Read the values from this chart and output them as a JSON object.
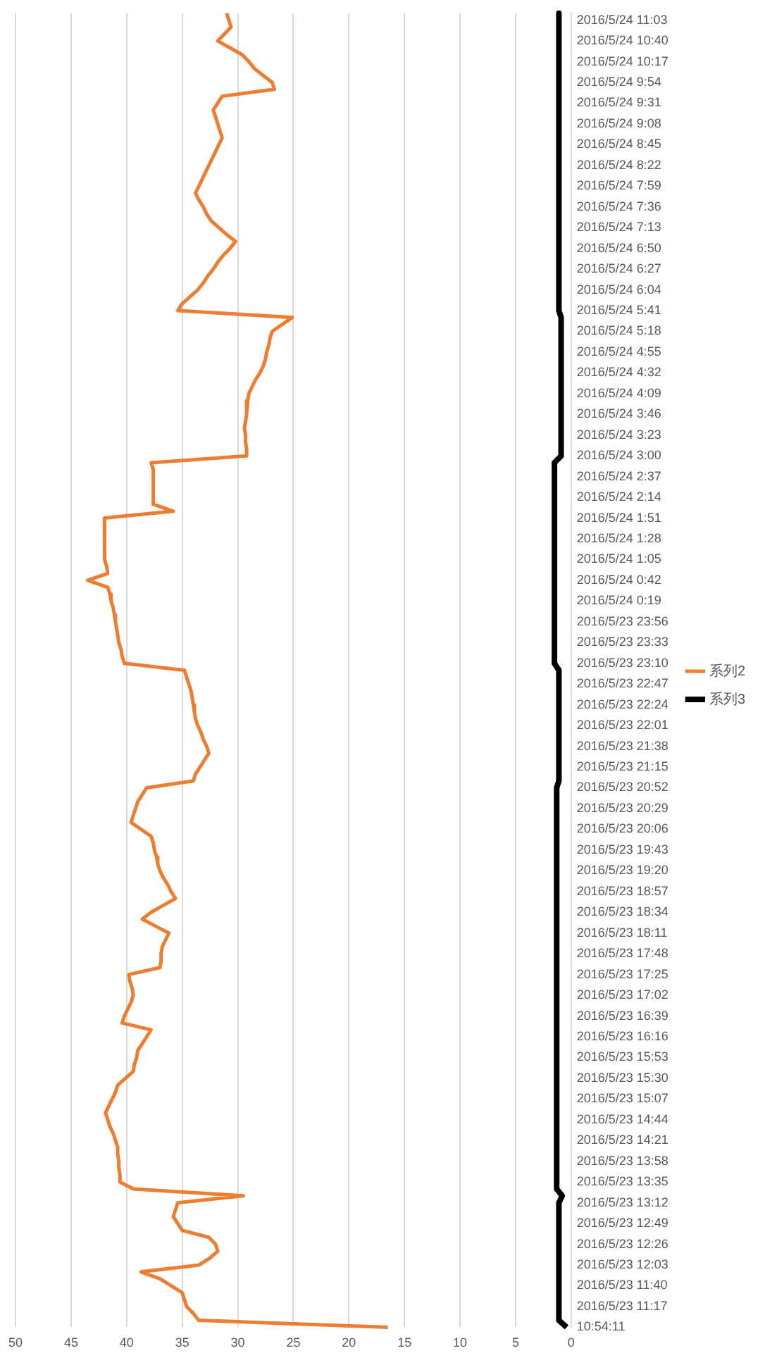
{
  "chart_data": {
    "type": "line",
    "categories": [
      null,
      "2016/5/24 11:03",
      null,
      null,
      "2016/5/24 10:40",
      null,
      null,
      "2016/5/24 10:17",
      null,
      null,
      "2016/5/24 9:54",
      null,
      null,
      "2016/5/24 9:31",
      null,
      null,
      "2016/5/24 9:08",
      null,
      null,
      "2016/5/24 8:45",
      null,
      null,
      "2016/5/24 8:22",
      null,
      null,
      "2016/5/24 7:59",
      null,
      null,
      "2016/5/24 7:36",
      null,
      null,
      "2016/5/24 7:13",
      null,
      null,
      "2016/5/24 6:50",
      null,
      null,
      "2016/5/24 6:27",
      null,
      null,
      "2016/5/24 6:04",
      null,
      null,
      "2016/5/24 5:41",
      null,
      null,
      "2016/5/24 5:18",
      null,
      null,
      "2016/5/24 4:55",
      null,
      null,
      "2016/5/24 4:32",
      null,
      null,
      "2016/5/24 4:09",
      null,
      null,
      "2016/5/24 3:46",
      null,
      null,
      "2016/5/24 3:23",
      null,
      null,
      "2016/5/24 3:00",
      null,
      null,
      "2016/5/24 2:37",
      null,
      null,
      "2016/5/24 2:14",
      null,
      null,
      "2016/5/24 1:51",
      null,
      null,
      "2016/5/24 1:28",
      null,
      null,
      "2016/5/24 1:05",
      null,
      null,
      "2016/5/24 0:42",
      null,
      null,
      "2016/5/24 0:19",
      null,
      null,
      "2016/5/23 23:56",
      null,
      null,
      "2016/5/23 23:33",
      null,
      null,
      "2016/5/23 23:10",
      null,
      null,
      "2016/5/23 22:47",
      null,
      null,
      "2016/5/23 22:24",
      null,
      null,
      "2016/5/23 22:01",
      null,
      null,
      "2016/5/23 21:38",
      null,
      null,
      "2016/5/23 21:15",
      null,
      null,
      "2016/5/23 20:52",
      null,
      null,
      "2016/5/23 20:29",
      null,
      null,
      "2016/5/23 20:06",
      null,
      null,
      "2016/5/23 19:43",
      null,
      null,
      "2016/5/23 19:20",
      null,
      null,
      "2016/5/23 18:57",
      null,
      null,
      "2016/5/23 18:34",
      null,
      null,
      "2016/5/23 18:11",
      null,
      null,
      "2016/5/23 17:48",
      null,
      null,
      "2016/5/23 17:25",
      null,
      null,
      "2016/5/23 17:02",
      null,
      null,
      "2016/5/23 16:39",
      null,
      null,
      "2016/5/23 16:16",
      null,
      null,
      "2016/5/23 15:53",
      null,
      null,
      "2016/5/23 15:30",
      null,
      null,
      "2016/5/23 15:07",
      null,
      null,
      "2016/5/23 14:44",
      null,
      null,
      "2016/5/23 14:21",
      null,
      null,
      "2016/5/23 13:58",
      null,
      null,
      "2016/5/23 13:35",
      null,
      null,
      "2016/5/23 13:12",
      null,
      null,
      "2016/5/23 12:49",
      null,
      null,
      "2016/5/23 12:26",
      null,
      null,
      "2016/5/23 12:03",
      null,
      null,
      "2016/5/23 11:40",
      null,
      null,
      "2016/5/23 11:17",
      null,
      null,
      "10:54:11"
    ],
    "series": [
      {
        "name": "系列2",
        "color": "#ed7d31",
        "values": [
          31,
          30.8,
          30.6,
          31.2,
          31.8,
          30.7,
          29.6,
          29,
          28.5,
          27.7,
          26.9,
          26.7,
          31.4,
          31.8,
          32.2,
          32,
          31.8,
          31.6,
          31.4,
          31.7,
          32,
          32.3,
          32.6,
          32.9,
          33.2,
          33.5,
          33.8,
          33.5,
          33.1,
          32.8,
          32.4,
          31.7,
          31,
          30.2,
          30.7,
          31.3,
          31.8,
          32.2,
          32.7,
          33.1,
          33.6,
          34.3,
          35,
          35.4,
          25.1,
          26,
          26.9,
          27.1,
          27.2,
          27.4,
          27.5,
          27.7,
          28,
          28.4,
          28.7,
          29,
          29.1,
          29.2,
          29.2,
          29.3,
          29.4,
          29.3,
          29.3,
          29.2,
          29.2,
          37.8,
          37.6,
          37.6,
          37.6,
          37.6,
          37.6,
          37.6,
          35.8,
          42,
          42,
          42,
          42,
          42,
          42,
          41.9,
          41.8,
          41.7,
          43.5,
          41.7,
          41.5,
          41.4,
          41.2,
          41.1,
          41,
          40.9,
          40.8,
          40.7,
          40.5,
          40.4,
          40.2,
          34.8,
          34.6,
          34.4,
          34.2,
          34.1,
          34,
          33.9,
          33.8,
          33.6,
          33.3,
          33.1,
          32.8,
          32.6,
          33,
          33.4,
          33.8,
          34,
          38.2,
          38.6,
          39,
          39.2,
          39.4,
          39.6,
          38.7,
          37.8,
          37.6,
          37.5,
          37.3,
          37.2,
          37,
          36.7,
          36.3,
          36,
          35.6,
          36.7,
          37.8,
          38.6,
          37.4,
          36.2,
          36.5,
          36.8,
          36.9,
          36.9,
          37,
          39.8,
          39.7,
          39.5,
          39.4,
          39.6,
          39.9,
          40.2,
          40.4,
          37.8,
          38.2,
          38.6,
          39,
          39.1,
          39.3,
          39.4,
          40.1,
          40.8,
          41,
          41.3,
          41.6,
          41.9,
          41.7,
          41.5,
          41.2,
          41,
          40.8,
          40.8,
          40.7,
          40.7,
          40.6,
          40.6,
          39.4,
          29.5,
          35.4,
          35.6,
          35.8,
          35.4,
          35,
          32.6,
          32,
          31.8,
          32.5,
          33.5,
          38.7,
          37,
          36,
          35,
          34.8,
          34.6,
          34,
          33.5,
          16.5
        ]
      },
      {
        "name": "系列3",
        "color": "#000000",
        "values": [
          1.1,
          1.1,
          1.1,
          1.1,
          1.1,
          1.1,
          1.1,
          1.1,
          1.1,
          1.1,
          1.1,
          1.1,
          1.1,
          1.1,
          1.1,
          1.1,
          1.1,
          1.1,
          1.1,
          1.1,
          1.1,
          1.1,
          1.1,
          1.1,
          1.1,
          1.1,
          1.1,
          1.1,
          1.1,
          1.1,
          1.1,
          1.1,
          1.1,
          1.1,
          1.1,
          1.1,
          1.1,
          1.1,
          1.1,
          1.1,
          1.1,
          1.1,
          1.1,
          1.1,
          0.9,
          0.9,
          0.9,
          0.9,
          0.9,
          0.9,
          0.9,
          0.9,
          0.9,
          0.9,
          0.9,
          0.9,
          0.9,
          0.9,
          0.9,
          0.9,
          0.9,
          0.9,
          0.9,
          0.9,
          0.9,
          1.5,
          1.5,
          1.5,
          1.5,
          1.5,
          1.5,
          1.5,
          1.5,
          1.5,
          1.5,
          1.5,
          1.5,
          1.5,
          1.5,
          1.5,
          1.5,
          1.5,
          1.5,
          1.5,
          1.5,
          1.5,
          1.5,
          1.5,
          1.5,
          1.5,
          1.5,
          1.5,
          1.5,
          1.5,
          1.5,
          1.1,
          1.1,
          1.1,
          1.1,
          1.1,
          1.1,
          1.1,
          1.1,
          1.1,
          1.1,
          1.1,
          1.1,
          1.1,
          1.1,
          1.1,
          1.1,
          1.1,
          1.3,
          1.3,
          1.3,
          1.3,
          1.3,
          1.3,
          1.3,
          1.3,
          1.3,
          1.3,
          1.3,
          1.3,
          1.3,
          1.3,
          1.3,
          1.3,
          1.3,
          1.3,
          1.3,
          1.3,
          1.3,
          1.3,
          1.3,
          1.3,
          1.3,
          1.3,
          1.3,
          1.3,
          1.3,
          1.3,
          1.3,
          1.3,
          1.3,
          1.3,
          1.3,
          1.3,
          1.3,
          1.3,
          1.3,
          1.3,
          1.3,
          1.3,
          1.3,
          1.3,
          1.3,
          1.3,
          1.3,
          1.3,
          1.3,
          1.3,
          1.3,
          1.3,
          1.3,
          1.3,
          1.3,
          1.3,
          1.3,
          1.3,
          1.3,
          0.8,
          1.1,
          1.1,
          1.1,
          1.1,
          1.1,
          1.1,
          1.1,
          1.1,
          1.1,
          1.1,
          1.1,
          1.1,
          1.1,
          1.1,
          1.1,
          1.1,
          1.1,
          1.1,
          0.4
        ]
      }
    ],
    "orientation": "horizontal",
    "xlim": [
      50,
      0
    ],
    "xticks": [
      50,
      45,
      40,
      35,
      30,
      25,
      20,
      15,
      10,
      5,
      0
    ],
    "grid": "x",
    "legend": "right",
    "marker": "none"
  }
}
